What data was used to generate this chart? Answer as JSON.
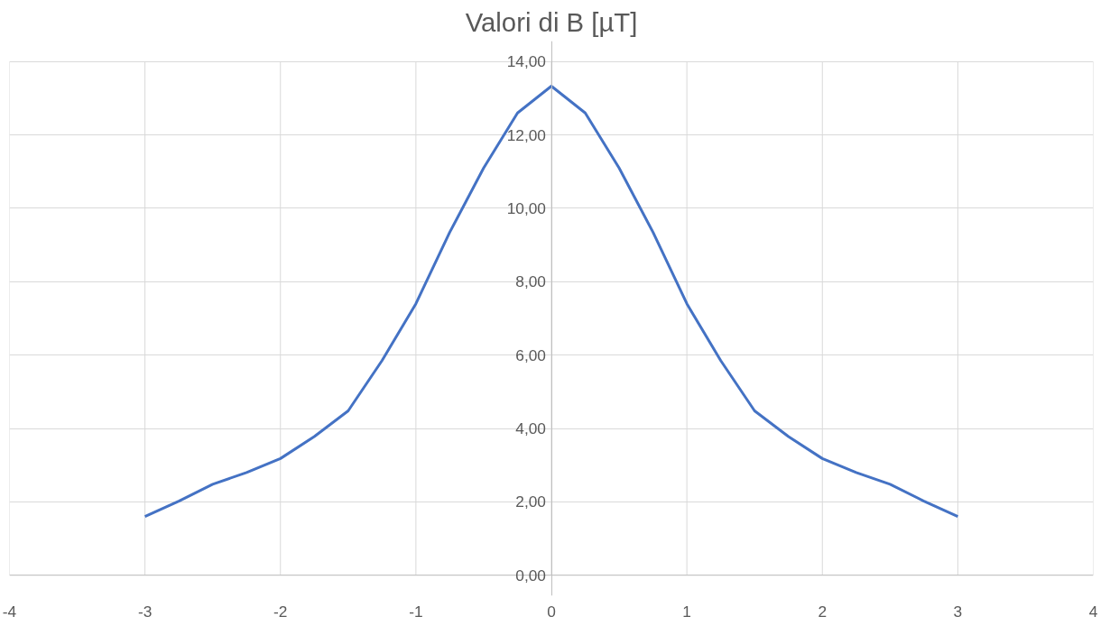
{
  "chart_data": {
    "type": "line",
    "title": "Valori di B [µT]",
    "x": [
      -3,
      -2.75,
      -2.5,
      -2.25,
      -2,
      -1.75,
      -1.5,
      -1.25,
      -1,
      -0.75,
      -0.5,
      -0.25,
      0,
      0.25,
      0.5,
      0.75,
      1,
      1.25,
      1.5,
      1.75,
      2,
      2.25,
      2.5,
      2.75,
      3
    ],
    "series": [
      {
        "color": "#4472c4",
        "values": [
          1.6,
          2.02,
          2.48,
          2.8,
          3.18,
          3.78,
          4.48,
          5.85,
          7.4,
          9.35,
          11.1,
          12.6,
          13.33,
          12.6,
          11.1,
          9.35,
          7.4,
          5.85,
          4.48,
          3.78,
          3.18,
          2.8,
          2.48,
          2.02,
          1.6
        ]
      }
    ],
    "xlim": [
      -4,
      4
    ],
    "xticks": [
      -4,
      -3,
      -2,
      -1,
      0,
      1,
      2,
      3,
      4
    ],
    "ylim": [
      0,
      14
    ],
    "yticks": [
      {
        "value": 0,
        "label": "0,00"
      },
      {
        "value": 2,
        "label": "2,00"
      },
      {
        "value": 4,
        "label": "4,00"
      },
      {
        "value": 6,
        "label": "6,00"
      },
      {
        "value": 8,
        "label": "8,00"
      },
      {
        "value": 10,
        "label": "10,00"
      },
      {
        "value": 12,
        "label": "12,00"
      },
      {
        "value": 14,
        "label": "14,00"
      }
    ],
    "grid": true,
    "marker": "none",
    "line_style": "solid"
  }
}
